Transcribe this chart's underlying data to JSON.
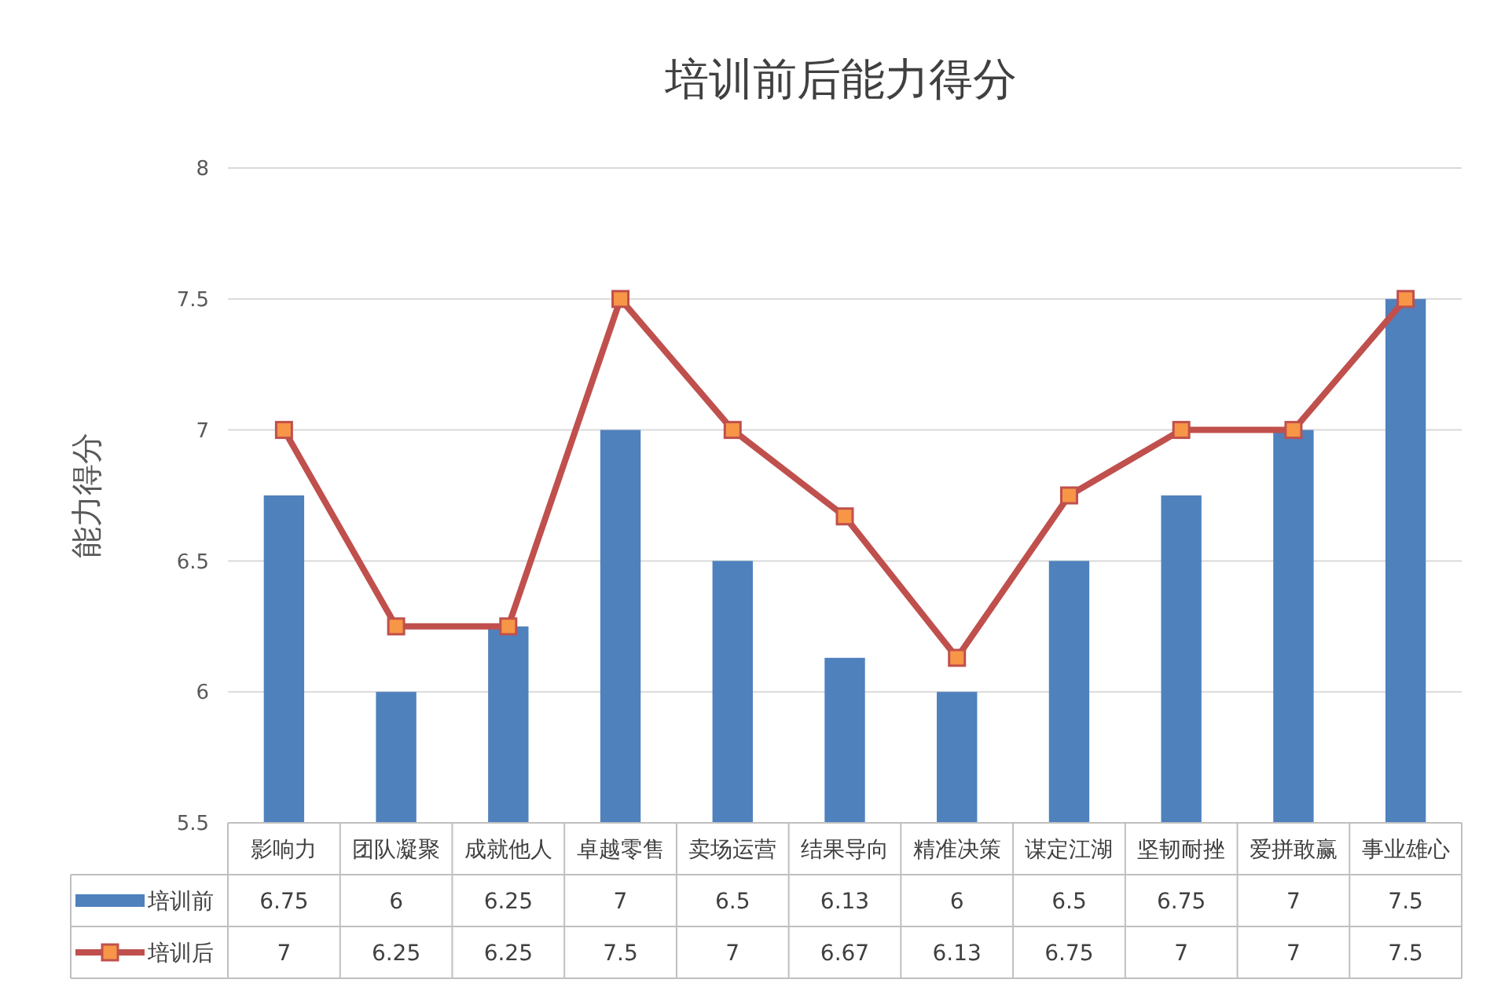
{
  "chart_data": {
    "type": "bar",
    "title": "培训前后能力得分",
    "ylabel": "能力得分",
    "categories": [
      "影响力",
      "团队凝聚",
      "成就他人",
      "卓越零售",
      "卖场运营",
      "结果导向",
      "精准决策",
      "谋定江湖",
      "坚韧耐挫",
      "爱拼敢赢",
      "事业雄心"
    ],
    "series": [
      {
        "name": "培训前",
        "color": "#4f81bd",
        "values": [
          6.75,
          6,
          6.25,
          7,
          6.5,
          6.13,
          6,
          6.5,
          6.75,
          7,
          7.5
        ]
      },
      {
        "name": "培训后",
        "type": "line",
        "color": "#c0504d",
        "marker": "square",
        "values": [
          7,
          6.25,
          6.25,
          7.5,
          7,
          6.67,
          6.13,
          6.75,
          7,
          7,
          7.5
        ]
      }
    ],
    "ylim": [
      5.5,
      8
    ],
    "yticks": [
      5.5,
      6,
      6.5,
      7,
      7.5,
      8
    ],
    "grid": "y",
    "legend": "bottom",
    "data_labels": true
  }
}
